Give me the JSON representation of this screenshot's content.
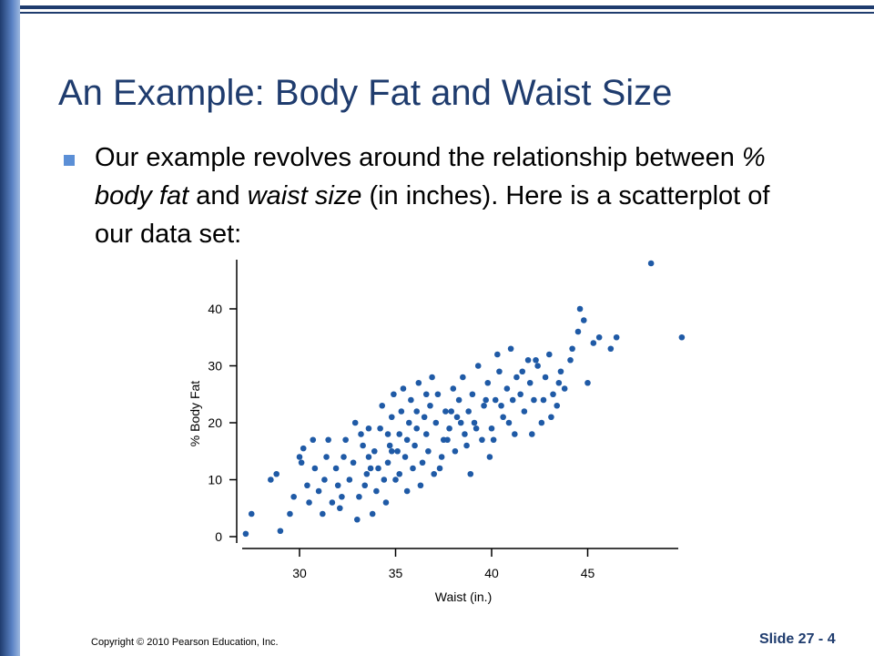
{
  "slide": {
    "title": "An Example: Body Fat and Waist Size",
    "bullet": {
      "part1": "Our example revolves around the relationship between ",
      "em1": "% body fat",
      "part2": " and ",
      "em2": "waist size",
      "part3": " (in inches). Here is a scatterplot of our data set:"
    },
    "footer": {
      "copyright": "Copyright © 2010 Pearson Education, Inc.",
      "slide_number": "Slide 27 - 4"
    }
  },
  "colors": {
    "accent": "#1f3c6e",
    "point": "#1f5aa6",
    "bullet": "#5b8fd6"
  },
  "chart_data": {
    "type": "scatter",
    "xlabel": "Waist (in.)",
    "ylabel": "% Body Fat",
    "x_ticks": [
      30,
      35,
      40,
      45
    ],
    "y_ticks": [
      0,
      10,
      20,
      30,
      40
    ],
    "xlim": [
      27,
      50
    ],
    "ylim": [
      -2,
      48
    ],
    "grid": false,
    "points": [
      [
        27.2,
        0.5
      ],
      [
        27.5,
        4
      ],
      [
        29,
        1
      ],
      [
        29.5,
        4
      ],
      [
        28.5,
        10
      ],
      [
        28.8,
        11
      ],
      [
        29.7,
        7
      ],
      [
        30,
        14
      ],
      [
        30.1,
        13
      ],
      [
        30.2,
        15.5
      ],
      [
        30.4,
        9
      ],
      [
        30.5,
        6
      ],
      [
        30.8,
        12
      ],
      [
        31,
        8
      ],
      [
        31.2,
        4
      ],
      [
        31.3,
        10
      ],
      [
        31.5,
        17
      ],
      [
        31.7,
        6
      ],
      [
        32,
        9
      ],
      [
        32.1,
        5
      ],
      [
        32.3,
        14
      ],
      [
        32.4,
        17
      ],
      [
        32.6,
        10
      ],
      [
        32.8,
        13
      ],
      [
        33,
        3
      ],
      [
        33.1,
        7
      ],
      [
        33.2,
        18
      ],
      [
        33.4,
        9
      ],
      [
        33.5,
        11
      ],
      [
        33.6,
        14
      ],
      [
        33.8,
        4
      ],
      [
        33.9,
        15
      ],
      [
        34,
        8
      ],
      [
        34.1,
        12
      ],
      [
        34.2,
        19
      ],
      [
        34.3,
        23
      ],
      [
        34.5,
        6
      ],
      [
        34.6,
        13
      ],
      [
        34.7,
        16
      ],
      [
        34.8,
        21
      ],
      [
        34.9,
        25
      ],
      [
        35,
        10
      ],
      [
        35.1,
        15
      ],
      [
        35.2,
        18
      ],
      [
        35.3,
        22
      ],
      [
        35.4,
        26
      ],
      [
        35.5,
        14
      ],
      [
        35.6,
        17
      ],
      [
        35.7,
        20
      ],
      [
        35.8,
        24
      ],
      [
        35.9,
        12
      ],
      [
        36,
        16
      ],
      [
        36.1,
        19
      ],
      [
        36.2,
        27
      ],
      [
        36.3,
        9
      ],
      [
        36.4,
        13
      ],
      [
        36.5,
        21
      ],
      [
        36.6,
        18
      ],
      [
        36.8,
        23
      ],
      [
        37,
        11
      ],
      [
        37.1,
        20
      ],
      [
        37.2,
        25
      ],
      [
        37.4,
        14
      ],
      [
        37.5,
        17
      ],
      [
        37.6,
        22
      ],
      [
        37.8,
        19
      ],
      [
        38,
        26
      ],
      [
        38.1,
        15
      ],
      [
        38.2,
        21
      ],
      [
        38.3,
        24
      ],
      [
        38.5,
        28
      ],
      [
        38.6,
        18
      ],
      [
        38.8,
        22
      ],
      [
        39,
        25
      ],
      [
        39.1,
        20
      ],
      [
        39.3,
        30
      ],
      [
        39.5,
        17
      ],
      [
        39.6,
        23
      ],
      [
        39.8,
        27
      ],
      [
        40,
        19
      ],
      [
        40.2,
        24
      ],
      [
        40.4,
        29
      ],
      [
        40.6,
        21
      ],
      [
        40.8,
        26
      ],
      [
        41,
        33
      ],
      [
        41.2,
        18
      ],
      [
        41.3,
        28
      ],
      [
        41.5,
        25
      ],
      [
        41.7,
        22
      ],
      [
        41.9,
        31
      ],
      [
        42,
        27
      ],
      [
        42.2,
        24
      ],
      [
        42.4,
        30
      ],
      [
        42.6,
        20
      ],
      [
        42.8,
        28
      ],
      [
        43,
        32
      ],
      [
        43.2,
        25
      ],
      [
        43.4,
        23
      ],
      [
        43.6,
        29
      ],
      [
        43.8,
        26
      ],
      [
        44.2,
        33
      ],
      [
        44.5,
        36
      ],
      [
        44.6,
        40
      ],
      [
        44.8,
        38
      ],
      [
        45,
        27
      ],
      [
        45.3,
        34
      ],
      [
        45.6,
        35
      ],
      [
        46.2,
        33
      ],
      [
        46.5,
        35
      ],
      [
        48.3,
        48
      ],
      [
        49.9,
        35
      ],
      [
        33.7,
        12
      ],
      [
        34.4,
        10
      ],
      [
        36.7,
        15
      ],
      [
        37.3,
        12
      ],
      [
        38.7,
        16
      ],
      [
        39.9,
        14
      ],
      [
        40.9,
        20
      ],
      [
        42.1,
        18
      ],
      [
        31.9,
        12
      ],
      [
        32.9,
        20
      ],
      [
        35.6,
        8
      ],
      [
        36.9,
        28
      ],
      [
        33.3,
        16
      ],
      [
        34.6,
        18
      ],
      [
        37.9,
        22
      ],
      [
        39.2,
        19
      ],
      [
        40.5,
        23
      ],
      [
        41.6,
        29
      ],
      [
        43.1,
        21
      ],
      [
        44.1,
        31
      ],
      [
        30.7,
        17
      ],
      [
        31.4,
        14
      ],
      [
        32.2,
        7
      ],
      [
        33.6,
        19
      ],
      [
        34.8,
        15
      ],
      [
        35.2,
        11
      ],
      [
        36.1,
        22
      ],
      [
        36.6,
        25
      ],
      [
        37.7,
        17
      ],
      [
        38.4,
        20
      ],
      [
        39.7,
        24
      ],
      [
        40.1,
        17
      ],
      [
        41.1,
        24
      ],
      [
        42.3,
        31
      ],
      [
        43.5,
        27
      ],
      [
        38.9,
        11
      ],
      [
        40.3,
        32
      ],
      [
        42.7,
        24
      ]
    ]
  }
}
